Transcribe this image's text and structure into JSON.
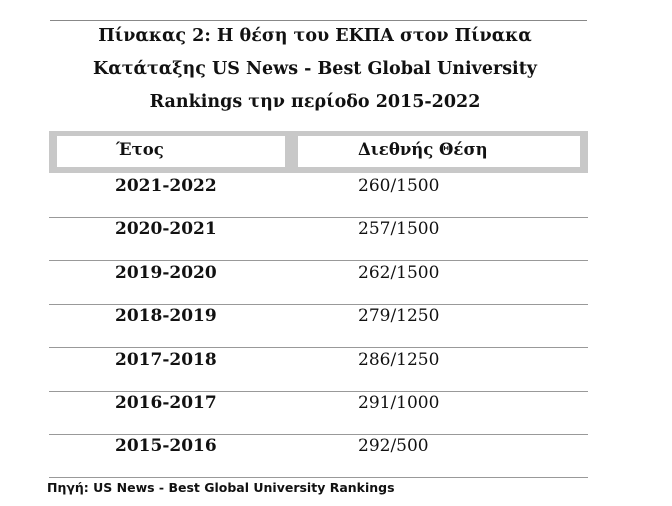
{
  "title": "Πίνακας 2: Η θέση του ΕΚΠΑ στον Πίνακα Κατάταξης US News - Best Global University Rankings την περίοδο 2015-2022",
  "table": {
    "header": [
      "Έτος",
      "Διεθνής Θέση"
    ],
    "rows": [
      [
        "2021-2022",
        "260/1500"
      ],
      [
        "2020-2021",
        "257/1500"
      ],
      [
        "2019-2020",
        "262/1500"
      ],
      [
        "2018-2019",
        "279/1250"
      ],
      [
        "2017-2018",
        "286/1250"
      ],
      [
        "2016-2017",
        "291/1000"
      ],
      [
        "2015-2016",
        "292/500"
      ]
    ]
  },
  "source": "Πηγή: US News - Best Global University Rankings"
}
